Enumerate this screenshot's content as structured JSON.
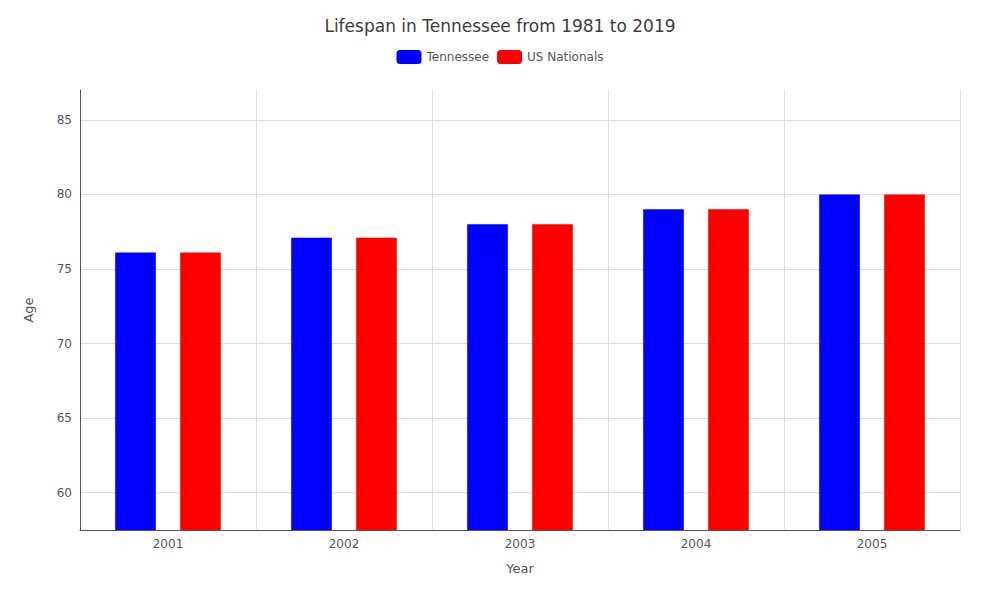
{
  "chart_data": {
    "type": "bar",
    "title": "Lifespan in Tennessee from 1981 to 2019",
    "xlabel": "Year",
    "ylabel": "Age",
    "categories": [
      "2001",
      "2002",
      "2003",
      "2004",
      "2005"
    ],
    "series": [
      {
        "name": "Tennessee",
        "color": "#0000ff",
        "values": [
          76.1,
          77.1,
          78.0,
          79.0,
          80.0
        ]
      },
      {
        "name": "US Nationals",
        "color": "#ff0000",
        "values": [
          76.1,
          77.1,
          78.0,
          79.0,
          80.0
        ]
      }
    ],
    "ylim": [
      57.5,
      87
    ],
    "yticks": [
      60,
      65,
      70,
      75,
      80,
      85
    ],
    "grid": true,
    "legend": "top"
  }
}
